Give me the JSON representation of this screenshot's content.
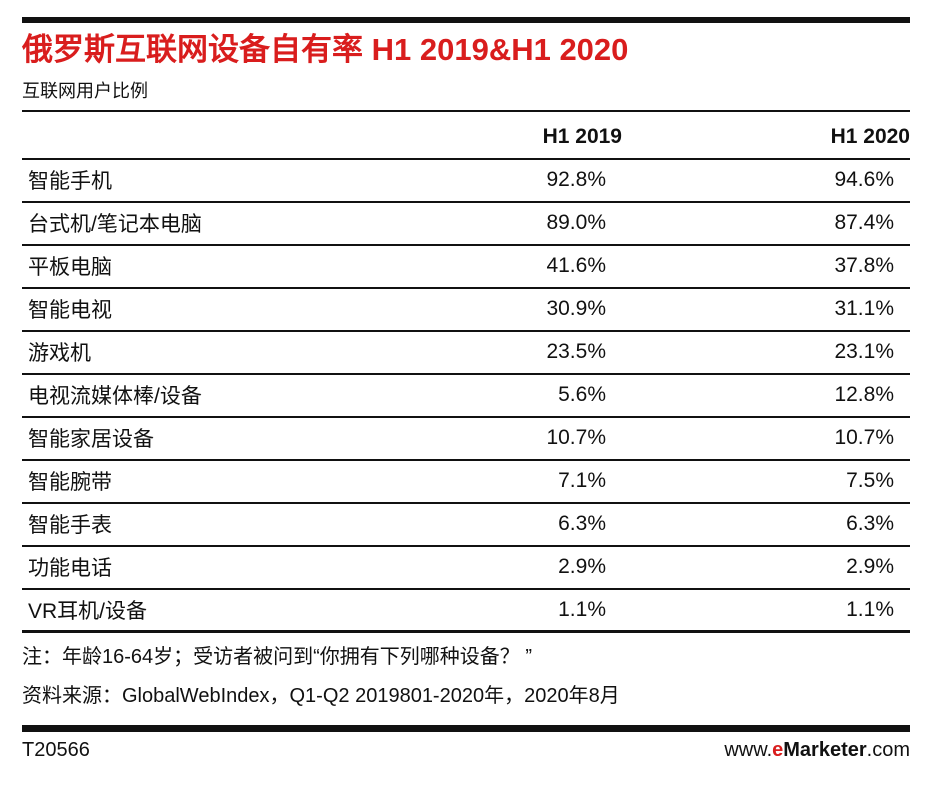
{
  "title": "俄罗斯互联网设备自有率 H1 2019&H1 2020",
  "subtitle": "互联网用户比例",
  "table": {
    "columns": [
      "H1 2019",
      "H1 2020"
    ],
    "rows": [
      {
        "label": "智能手机",
        "h1_2019": "92.8%",
        "h1_2020": "94.6%"
      },
      {
        "label": "台式机/笔记本电脑",
        "h1_2019": "89.0%",
        "h1_2020": "87.4%"
      },
      {
        "label": "平板电脑",
        "h1_2019": "41.6%",
        "h1_2020": "37.8%"
      },
      {
        "label": "智能电视",
        "h1_2019": "30.9%",
        "h1_2020": "31.1%"
      },
      {
        "label": "游戏机",
        "h1_2019": "23.5%",
        "h1_2020": "23.1%"
      },
      {
        "label": "电视流媒体棒/设备",
        "h1_2019": "5.6%",
        "h1_2020": "12.8%"
      },
      {
        "label": "智能家居设备",
        "h1_2019": "10.7%",
        "h1_2020": "10.7%"
      },
      {
        "label": "智能腕带",
        "h1_2019": "7.1%",
        "h1_2020": "7.5%"
      },
      {
        "label": "智能手表",
        "h1_2019": "6.3%",
        "h1_2020": "6.3%"
      },
      {
        "label": "功能电话",
        "h1_2019": "2.9%",
        "h1_2020": "2.9%"
      },
      {
        "label": "VR耳机/设备",
        "h1_2019": "1.1%",
        "h1_2020": "1.1%"
      }
    ]
  },
  "notes": {
    "note": "注：年龄16-64岁；受访者被问到“你拥有下列哪种设备？ ”",
    "source": "资料来源：GlobalWebIndex，Q1-Q2 2019801-2020年，2020年8月"
  },
  "footer": {
    "chart_id": "T20566",
    "site_prefix": "www.",
    "site_e": "e",
    "site_name": "Marketer",
    "site_suffix": ".com"
  },
  "colors": {
    "accent_red": "#d91d1d",
    "text": "#111111",
    "line": "#111111"
  },
  "chart_data": {
    "type": "table",
    "title": "俄罗斯互联网设备自有率 H1 2019&H1 2020",
    "subtitle": "互联网用户比例",
    "unit": "%",
    "categories": [
      "智能手机",
      "台式机/笔记本电脑",
      "平板电脑",
      "智能电视",
      "游戏机",
      "电视流媒体棒/设备",
      "智能家居设备",
      "智能腕带",
      "智能手表",
      "功能电话",
      "VR耳机/设备"
    ],
    "series": [
      {
        "name": "H1 2019",
        "values": [
          92.8,
          89.0,
          41.6,
          30.9,
          23.5,
          5.6,
          10.7,
          7.1,
          6.3,
          2.9,
          1.1
        ]
      },
      {
        "name": "H1 2020",
        "values": [
          94.6,
          87.4,
          37.8,
          31.1,
          23.1,
          12.8,
          10.7,
          7.5,
          6.3,
          2.9,
          1.1
        ]
      }
    ],
    "note": "注：年龄16-64岁；受访者被问到“你拥有下列哪种设备？ ”",
    "source": "资料来源：GlobalWebIndex，Q1-Q2 2019801-2020年，2020年8月",
    "chart_id": "T20566"
  }
}
